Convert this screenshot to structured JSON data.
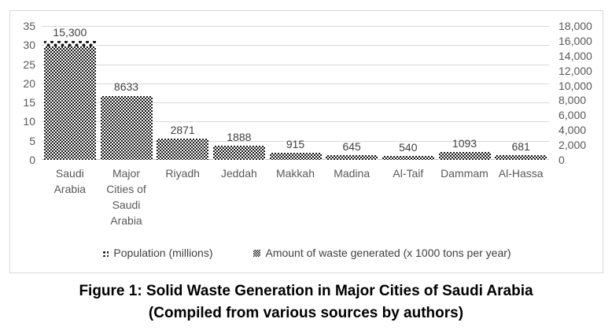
{
  "figure_caption": {
    "line1": "Figure 1: Solid Waste Generation in Major Cities of Saudi Arabia",
    "line2": "(Compiled from various sources by authors)"
  },
  "chart_data": {
    "type": "bar",
    "title": "",
    "categories": [
      "Saudi Arabia",
      "Major Cities of Saudi Arabia",
      "Riyadh",
      "Jeddah",
      "Makkah",
      "Madina",
      "Al-Taif",
      "Dammam",
      "Al-Hassa"
    ],
    "series": [
      {
        "name": "Population (millions)",
        "axis": "left",
        "pattern": "dots",
        "values": [
          31,
          16.5,
          5.2,
          3.4,
          1.6,
          1.1,
          0.9,
          1.0,
          1.1
        ],
        "note": "values not labeled on chart; estimated from bar heights — bars fully hidden behind waste bars except Saudi Arabia where the dotted top is visible at ~31"
      },
      {
        "name": "Amount of waste generated (x 1000 tons per year)",
        "axis": "right",
        "pattern": "checker",
        "values": [
          15300,
          8633,
          2871,
          1888,
          915,
          645,
          540,
          1093,
          681
        ],
        "labels": [
          "15,300",
          "8633",
          "2871",
          "1888",
          "915",
          "645",
          "540",
          "1093",
          "681"
        ]
      }
    ],
    "left_axis": {
      "min": 0,
      "max": 35,
      "ticks": [
        {
          "label": "0",
          "value": 0
        },
        {
          "label": "5",
          "value": 5
        },
        {
          "label": "10",
          "value": 10
        },
        {
          "label": "15",
          "value": 15
        },
        {
          "label": "20",
          "value": 20
        },
        {
          "label": "25",
          "value": 25
        },
        {
          "label": "30",
          "value": 30
        },
        {
          "label": "35",
          "value": 35
        }
      ]
    },
    "right_axis": {
      "min": 0,
      "max": 18000,
      "ticks": [
        {
          "label": "0",
          "value": 0
        },
        {
          "label": "2,000",
          "value": 2000
        },
        {
          "label": "4,000",
          "value": 4000
        },
        {
          "label": "6,000",
          "value": 6000
        },
        {
          "label": "8,000",
          "value": 8000
        },
        {
          "label": "10,000",
          "value": 10000
        },
        {
          "label": "12,000",
          "value": 12000
        },
        {
          "label": "14,000",
          "value": 14000
        },
        {
          "label": "16,000",
          "value": 16000
        },
        {
          "label": "18,000",
          "value": 18000
        }
      ]
    },
    "legend": [
      "Population (millions)",
      "Amount of waste generated (x 1000 tons per year)"
    ],
    "legend_position": "bottom",
    "grid": true
  },
  "colors": {
    "axis_text": "#595959",
    "data_label": "#404040",
    "gridline": "#d9d9d9",
    "axis_line": "#bfbfbf",
    "pattern_ink": "#161616",
    "frame_border": "#d9d9d9",
    "caption_text": "#000000"
  }
}
